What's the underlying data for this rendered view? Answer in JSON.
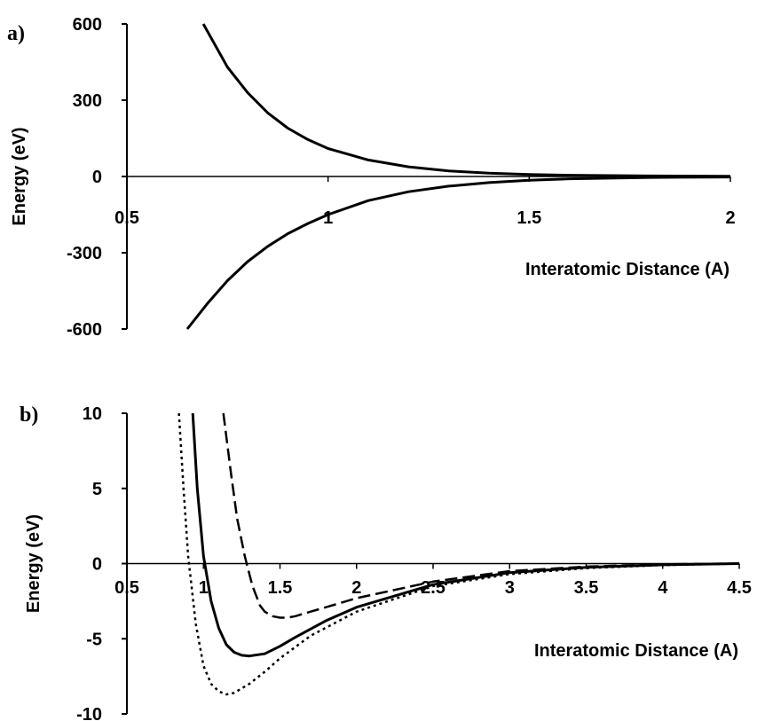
{
  "chart_data": [
    {
      "panel": "a)",
      "type": "line",
      "xlabel": "Interatomic Distance (A)",
      "ylabel": "Energy (eV)",
      "xlim": [
        0.5,
        2
      ],
      "ylim": [
        -600,
        600
      ],
      "xticks": [
        "0.5",
        "1",
        "1.5",
        "2"
      ],
      "yticks": [
        "600",
        "300",
        "0",
        "-300",
        "-600"
      ],
      "grid": false,
      "legend": "none",
      "series": [
        {
          "style": "solid",
          "x": [
            0.69,
            0.75,
            0.8,
            0.85,
            0.9,
            0.95,
            1.0,
            1.1,
            1.2,
            1.3,
            1.4,
            1.5,
            1.6,
            1.8,
            2.0
          ],
          "y": [
            600,
            430,
            330,
            250,
            190,
            145,
            110,
            65,
            38,
            22,
            13,
            8,
            5,
            2,
            1
          ]
        },
        {
          "style": "solid",
          "x": [
            0.65,
            0.7,
            0.75,
            0.8,
            0.85,
            0.9,
            0.95,
            1.0,
            1.1,
            1.2,
            1.3,
            1.4,
            1.5,
            1.6,
            1.8,
            2.0
          ],
          "y": [
            -600,
            -500,
            -410,
            -335,
            -275,
            -225,
            -185,
            -150,
            -95,
            -60,
            -38,
            -24,
            -15,
            -9,
            -4,
            -2
          ]
        }
      ]
    },
    {
      "panel": "b)",
      "type": "line",
      "xlabel": "Interatomic Distance (A)",
      "ylabel": "Energy (eV)",
      "xlim": [
        0.5,
        4.5
      ],
      "ylim": [
        -10,
        10
      ],
      "xticks": [
        "0.5",
        "1",
        "1.5",
        "2",
        "2.5",
        "3",
        "3.5",
        "4",
        "4.5"
      ],
      "yticks": [
        "10",
        "5",
        "0",
        "-5",
        "-10"
      ],
      "grid": false,
      "legend": "none",
      "series": [
        {
          "style": "dotted",
          "x": [
            0.84,
            0.87,
            0.9,
            0.95,
            1.0,
            1.05,
            1.1,
            1.15,
            1.2,
            1.25,
            1.3,
            1.4,
            1.5,
            1.7,
            2.0,
            2.5,
            3.0,
            3.5,
            4.0,
            4.5
          ],
          "y": [
            10,
            5,
            0.5,
            -4,
            -6.8,
            -8.0,
            -8.5,
            -8.7,
            -8.6,
            -8.3,
            -8.0,
            -7.2,
            -6.3,
            -4.8,
            -3.2,
            -1.5,
            -0.7,
            -0.3,
            -0.1,
            0
          ]
        },
        {
          "style": "solid",
          "x": [
            0.93,
            0.96,
            1.0,
            1.05,
            1.1,
            1.15,
            1.2,
            1.25,
            1.3,
            1.4,
            1.5,
            1.6,
            1.8,
            2.0,
            2.5,
            3.0,
            3.5,
            4.0,
            4.5
          ],
          "y": [
            10,
            5,
            0.5,
            -2.5,
            -4.3,
            -5.4,
            -5.9,
            -6.1,
            -6.15,
            -6.0,
            -5.5,
            -4.9,
            -3.8,
            -2.9,
            -1.4,
            -0.6,
            -0.25,
            -0.08,
            0
          ]
        },
        {
          "style": "dashed",
          "x": [
            1.13,
            1.18,
            1.22,
            1.27,
            1.32,
            1.37,
            1.4,
            1.45,
            1.5,
            1.55,
            1.6,
            1.7,
            1.8,
            2.0,
            2.5,
            3.0,
            3.5,
            4.0,
            4.5
          ],
          "y": [
            10,
            6,
            3,
            0.5,
            -1.5,
            -2.8,
            -3.2,
            -3.5,
            -3.6,
            -3.6,
            -3.5,
            -3.2,
            -2.9,
            -2.3,
            -1.2,
            -0.5,
            -0.2,
            -0.05,
            0
          ]
        }
      ]
    }
  ]
}
